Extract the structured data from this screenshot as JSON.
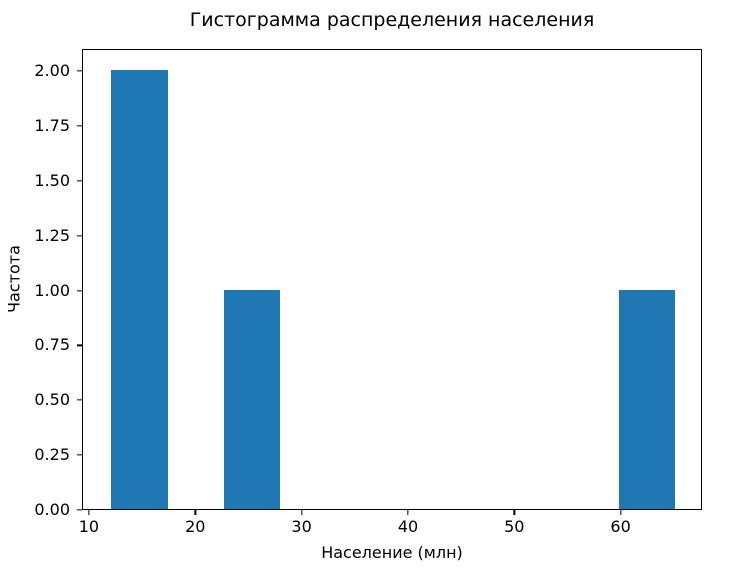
{
  "figure": {
    "background": "#ffffff",
    "axis_color": "#000000",
    "text_color": "#000000"
  },
  "chart_data": {
    "type": "bar",
    "subtype": "histogram",
    "title": "Гистограмма распределения населения",
    "xlabel": "Население (млн)",
    "ylabel": "Частота",
    "bar_color": "#1f77b4",
    "grid": false,
    "legend": false,
    "xlim": [
      9.35,
      67.65
    ],
    "ylim": [
      0,
      2.1
    ],
    "xticks": [
      {
        "value": 10,
        "label": "10"
      },
      {
        "value": 20,
        "label": "20"
      },
      {
        "value": 30,
        "label": "30"
      },
      {
        "value": 40,
        "label": "40"
      },
      {
        "value": 50,
        "label": "50"
      },
      {
        "value": 60,
        "label": "60"
      }
    ],
    "yticks": [
      {
        "value": 0.0,
        "label": "0.00"
      },
      {
        "value": 0.25,
        "label": "0.25"
      },
      {
        "value": 0.5,
        "label": "0.50"
      },
      {
        "value": 0.75,
        "label": "0.75"
      },
      {
        "value": 1.0,
        "label": "1.00"
      },
      {
        "value": 1.25,
        "label": "1.25"
      },
      {
        "value": 1.5,
        "label": "1.50"
      },
      {
        "value": 1.75,
        "label": "1.75"
      },
      {
        "value": 2.0,
        "label": "2.00"
      }
    ],
    "bins": [
      {
        "x0": 12.0,
        "x1": 17.3,
        "count": 2
      },
      {
        "x0": 17.3,
        "x1": 22.6,
        "count": 0
      },
      {
        "x0": 22.6,
        "x1": 27.9,
        "count": 1
      },
      {
        "x0": 27.9,
        "x1": 33.2,
        "count": 0
      },
      {
        "x0": 33.2,
        "x1": 38.5,
        "count": 0
      },
      {
        "x0": 38.5,
        "x1": 43.8,
        "count": 0
      },
      {
        "x0": 43.8,
        "x1": 49.1,
        "count": 0
      },
      {
        "x0": 49.1,
        "x1": 54.4,
        "count": 0
      },
      {
        "x0": 54.4,
        "x1": 59.7,
        "count": 0
      },
      {
        "x0": 59.7,
        "x1": 65.0,
        "count": 1
      }
    ]
  }
}
